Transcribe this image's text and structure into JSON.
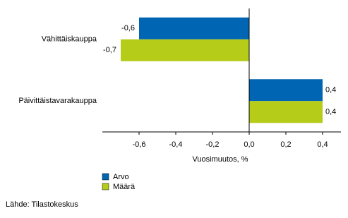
{
  "chart_data": {
    "type": "hbar",
    "categories": [
      "Vähittäiskauppa",
      "Päivittäistavarakauppa"
    ],
    "series": [
      {
        "name": "Arvo",
        "color": "#0065b3",
        "values": [
          -0.6,
          0.4
        ],
        "value_labels": [
          "-0,6",
          "0,4"
        ]
      },
      {
        "name": "Määrä",
        "color": "#b5cc18",
        "values": [
          -0.7,
          0.4
        ],
        "value_labels": [
          "-0,7",
          "0,4"
        ]
      }
    ],
    "xlim": [
      -0.8,
      0.5
    ],
    "xticks": [
      {
        "value": -0.6,
        "label": "-0,6"
      },
      {
        "value": -0.4,
        "label": "-0,4"
      },
      {
        "value": -0.2,
        "label": "-0,2"
      },
      {
        "value": 0,
        "label": "0,0"
      },
      {
        "value": 0.2,
        "label": "0,2"
      },
      {
        "value": 0.4,
        "label": "0,4"
      }
    ],
    "xlabel": "Vuosimuutos, %",
    "legend": "bottom-left",
    "source": "Lähde: Tilastokeskus"
  }
}
